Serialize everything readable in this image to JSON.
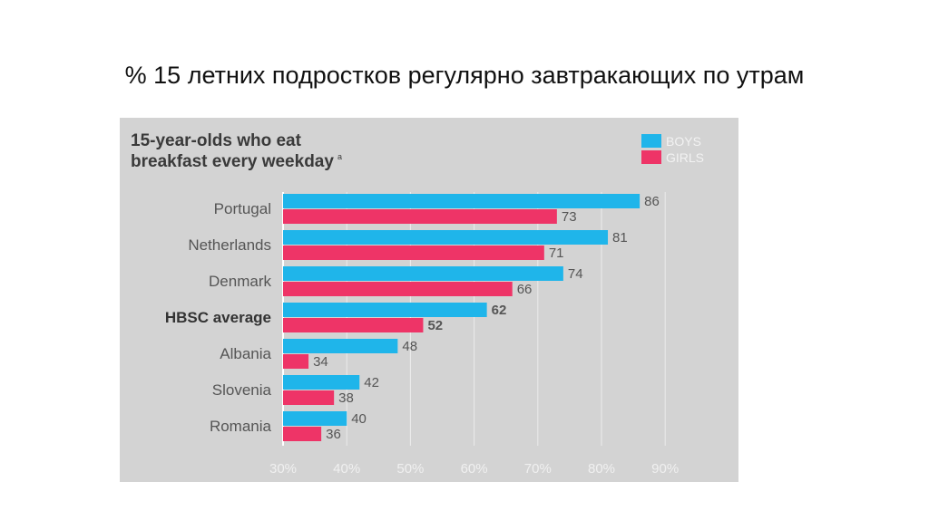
{
  "slide_title": "% 15 летних подростков регулярно завтракающих по утрам",
  "chart_data": {
    "type": "bar",
    "orientation": "horizontal",
    "title_line1": "15-year-olds who eat",
    "title_line2": "breakfast every weekday",
    "title_footnote": "a",
    "categories": [
      "Portugal",
      "Netherlands",
      "Denmark",
      "HBSC average",
      "Albania",
      "Slovenia",
      "Romania"
    ],
    "highlighted_category": "HBSC average",
    "series": [
      {
        "name": "BOYS",
        "color": "#1fb5ea",
        "values": [
          86,
          81,
          74,
          62,
          48,
          42,
          40
        ]
      },
      {
        "name": "GIRLS",
        "color": "#ee3467",
        "values": [
          73,
          71,
          66,
          52,
          34,
          38,
          36
        ]
      }
    ],
    "xlim": [
      30,
      90
    ],
    "xticks": [
      "30%",
      "40%",
      "50%",
      "60%",
      "70%",
      "80%",
      "90%"
    ],
    "grid": true,
    "legend_position": "top-right",
    "background_color": "#d3d3d3"
  }
}
